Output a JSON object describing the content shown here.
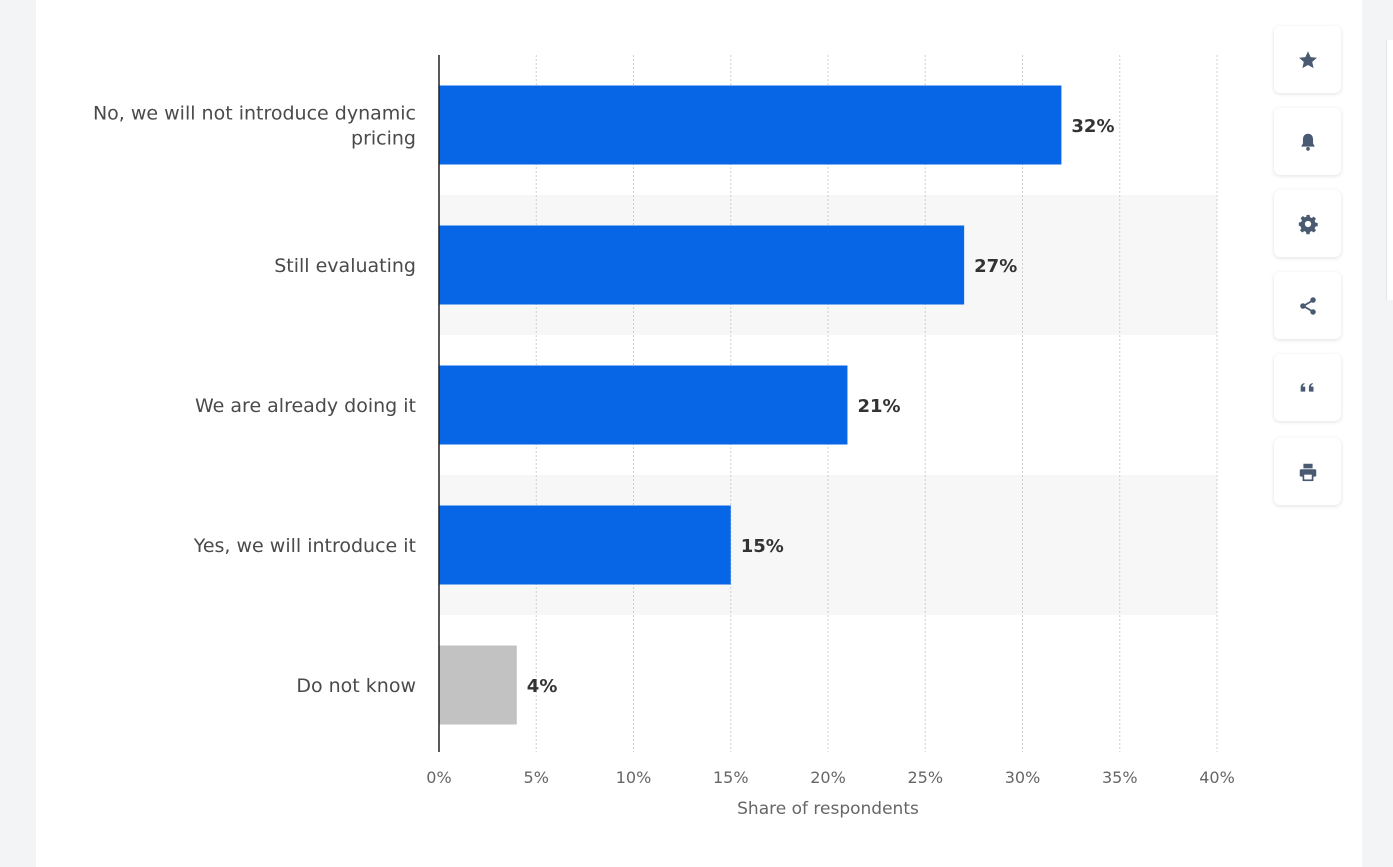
{
  "chart_data": {
    "type": "bar",
    "orientation": "horizontal",
    "categories": [
      [
        "No, we will not introduce dynamic",
        "pricing"
      ],
      [
        "Still evaluating"
      ],
      [
        "We are already doing it"
      ],
      [
        "Yes, we will introduce it"
      ],
      [
        "Do not know"
      ]
    ],
    "values": [
      32,
      27,
      21,
      15,
      4
    ],
    "value_labels": [
      "32%",
      "27%",
      "21%",
      "15%",
      "4%"
    ],
    "bar_colors": [
      "#0766e6",
      "#0766e6",
      "#0766e6",
      "#0766e6",
      "#c2c2c2"
    ],
    "xlabel": "Share of respondents",
    "xlim": [
      0,
      40
    ],
    "xticks": [
      0,
      5,
      10,
      15,
      20,
      25,
      30,
      35,
      40
    ],
    "xtick_labels": [
      "0%",
      "5%",
      "10%",
      "15%",
      "20%",
      "25%",
      "30%",
      "35%",
      "40%"
    ],
    "grid": true
  },
  "toolbar": {
    "buttons": [
      {
        "name": "favorite-button",
        "icon": "star-icon"
      },
      {
        "name": "notification-button",
        "icon": "bell-icon"
      },
      {
        "name": "settings-button",
        "icon": "gear-icon"
      },
      {
        "name": "share-button",
        "icon": "share-icon"
      },
      {
        "name": "cite-button",
        "icon": "quote-icon"
      },
      {
        "name": "print-button",
        "icon": "printer-icon"
      }
    ],
    "icon_color": "#4a5a72"
  }
}
